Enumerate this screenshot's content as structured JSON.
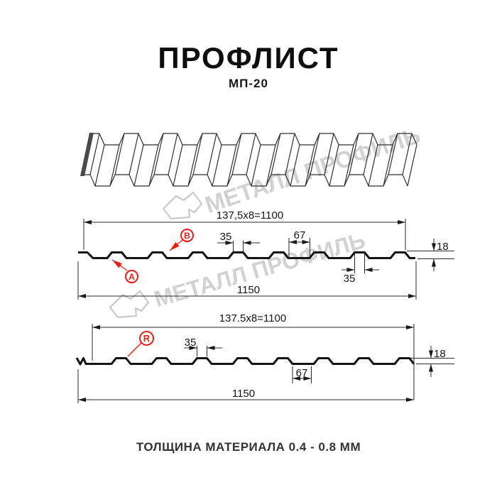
{
  "title": "ПРОФЛИСТ",
  "subtitle": "МП-20",
  "watermark": {
    "text": "МЕТАЛЛ ПРОФИЛЬ"
  },
  "profile_ab": {
    "working_width": "137,5x8=1100",
    "rib_width_top": "35",
    "flute_width": "67",
    "height": "18",
    "rib_width_bottom": "35",
    "overall_width": "1150",
    "label_a": "А",
    "label_b": "В"
  },
  "profile_r": {
    "working_width": "137.5x8=1100",
    "rib_width": "35",
    "flute_width": "67",
    "height": "18",
    "overall_width": "1150",
    "label_r": "R"
  },
  "footer": {
    "thickness_note": "ТОЛЩИНА МАТЕРИАЛА 0.4 - 0.8 ММ"
  },
  "colors": {
    "accent_red": "#ee1c0f",
    "line_black": "#1a1a1a",
    "watermark_gray": "#d2d2d2"
  }
}
